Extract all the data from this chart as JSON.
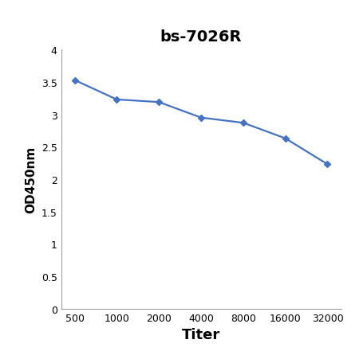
{
  "title": "bs-7026R",
  "xlabel": "Titer",
  "ylabel": "OD450nm",
  "x_values": [
    500,
    1000,
    2000,
    4000,
    8000,
    16000,
    32000
  ],
  "y_values": [
    3.53,
    3.23,
    3.19,
    2.95,
    2.87,
    2.63,
    2.23
  ],
  "line_color": "#4472c4",
  "marker": "D",
  "marker_size": 4,
  "line_width": 1.6,
  "ylim": [
    0,
    4.0
  ],
  "yticks": [
    0,
    0.5,
    1,
    1.5,
    2,
    2.5,
    3,
    3.5,
    4
  ],
  "ytick_labels": [
    "0",
    "0.5",
    "1",
    "1.5",
    "2",
    "2.5",
    "3",
    "3.5",
    "4"
  ],
  "xtick_labels": [
    "500",
    "1000",
    "2000",
    "4000",
    "8000",
    "16000",
    "32000"
  ],
  "title_fontsize": 14,
  "xlabel_fontsize": 13,
  "ylabel_fontsize": 11,
  "tick_fontsize": 9,
  "background_color": "#ffffff"
}
